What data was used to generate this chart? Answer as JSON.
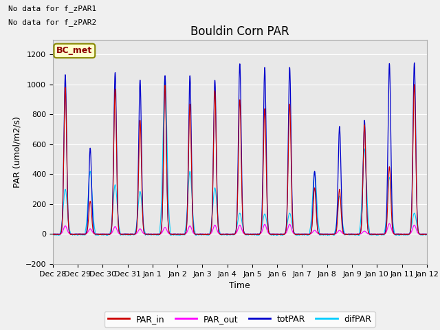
{
  "title": "Bouldin Corn PAR",
  "ylabel": "PAR (umol/m2/s)",
  "xlabel": "Time",
  "ylim": [
    -200,
    1300
  ],
  "yticks": [
    -200,
    0,
    200,
    400,
    600,
    800,
    1000,
    1200
  ],
  "fig_facecolor": "#f0f0f0",
  "plot_bg_color": "#e8e8e8",
  "no_data_text1": "No data for f_zPAR1",
  "no_data_text2": "No data for f_zPAR2",
  "bc_met_label": "BC_met",
  "line_colors": {
    "PAR_in": "#cc0000",
    "PAR_out": "#ff00ff",
    "totPAR": "#0000cc",
    "difPAR": "#00ccff"
  },
  "xtick_labels": [
    "Dec 28",
    "Dec 29",
    "Dec 30",
    "Dec 31",
    "Jan 1",
    "Jan 2",
    "Jan 3",
    "Jan 4",
    "Jan 5",
    "Jan 6",
    "Jan 7",
    "Jan 8",
    "Jan 9",
    "Jan 10",
    "Jan 11",
    "Jan 12"
  ],
  "num_days": 15,
  "title_fontsize": 12,
  "label_fontsize": 9,
  "tick_fontsize": 8,
  "note_fontsize": 8
}
